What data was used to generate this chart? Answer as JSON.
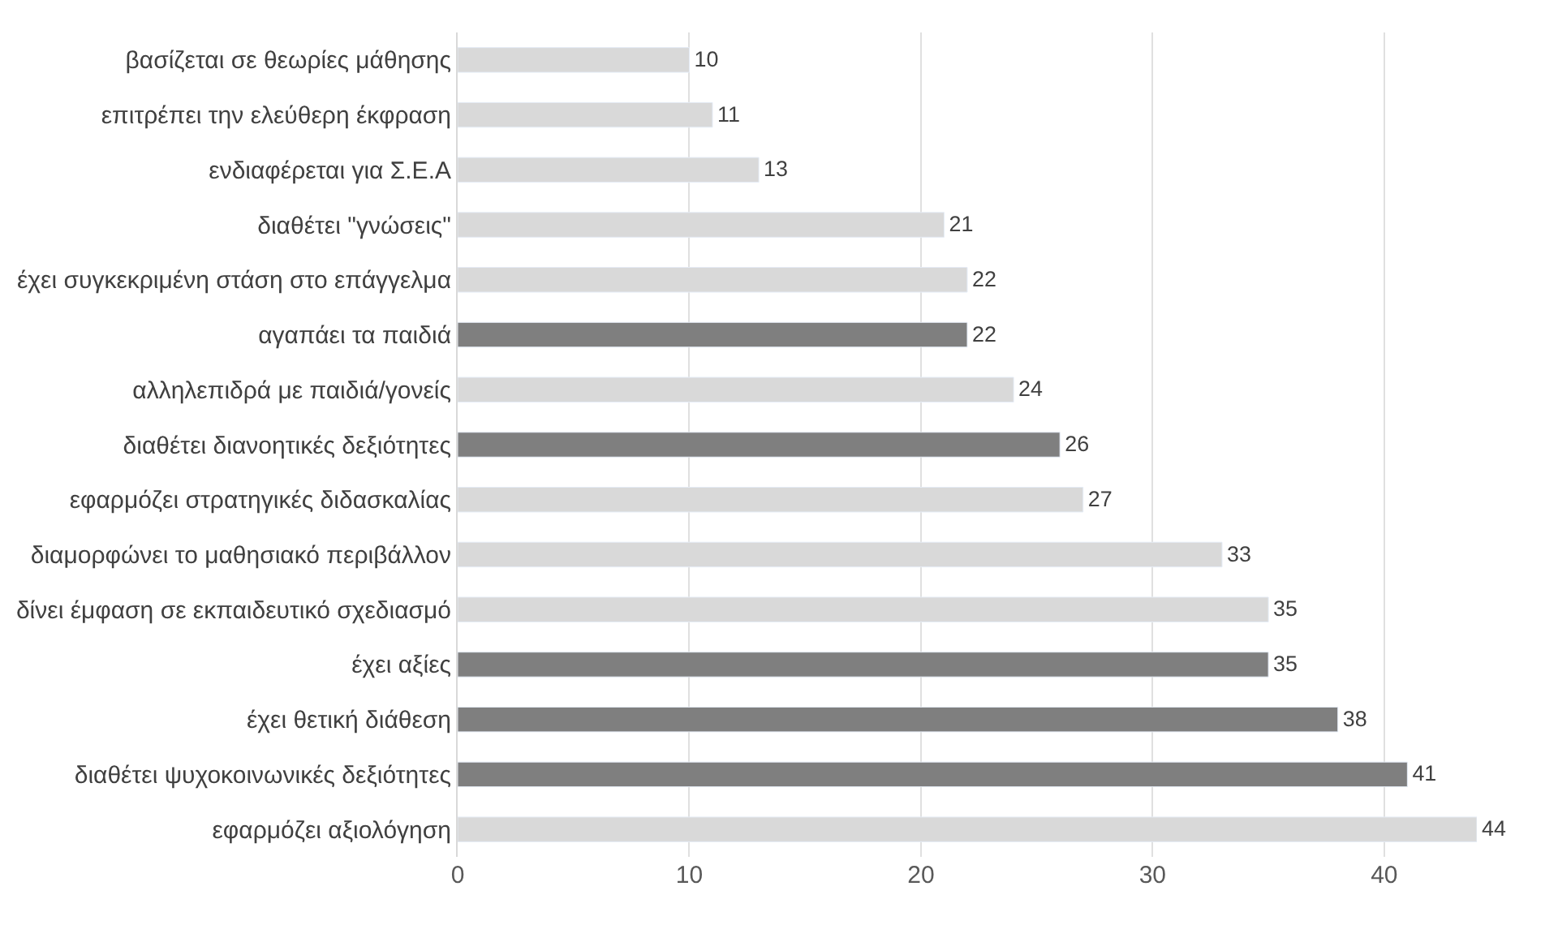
{
  "chart_data": {
    "type": "bar",
    "orientation": "horizontal",
    "categories": [
      "βασίζεται σε θεωρίες μάθησης",
      "επιτρέπει την ελεύθερη έκφραση",
      "ενδιαφέρεται για Σ.Ε.Α",
      "διαθέτει \"γνώσεις\"",
      "έχει συγκεκριμένη στάση στο επάγγελμα",
      "αγαπάει τα παιδιά",
      "αλληλεπιδρά με παιδιά/γονείς",
      "διαθέτει διανοητικές δεξιότητες",
      "εφαρμόζει στρατηγικές διδασκαλίας",
      "διαμορφώνει το μαθησιακό περιβάλλον",
      "δίνει έμφαση σε εκπαιδευτικό σχεδιασμό",
      "έχει αξίες",
      "έχει θετική διάθεση",
      "διαθέτει ψυχοκοινωνικές δεξιότητες",
      "εφαρμόζει αξιολόγηση"
    ],
    "values": [
      10,
      11,
      13,
      21,
      22,
      22,
      24,
      26,
      27,
      33,
      35,
      35,
      38,
      41,
      44
    ],
    "colors": [
      "#d9d9d9",
      "#d9d9d9",
      "#d9d9d9",
      "#d9d9d9",
      "#d9d9d9",
      "#7f7f7f",
      "#d9d9d9",
      "#7f7f7f",
      "#d9d9d9",
      "#d9d9d9",
      "#d9d9d9",
      "#7f7f7f",
      "#7f7f7f",
      "#7f7f7f",
      "#d9d9d9"
    ],
    "xlim": [
      0,
      44
    ],
    "xticks": [
      0,
      10,
      20,
      30,
      40
    ],
    "grid": "x",
    "data_labels": true,
    "legend": false
  }
}
